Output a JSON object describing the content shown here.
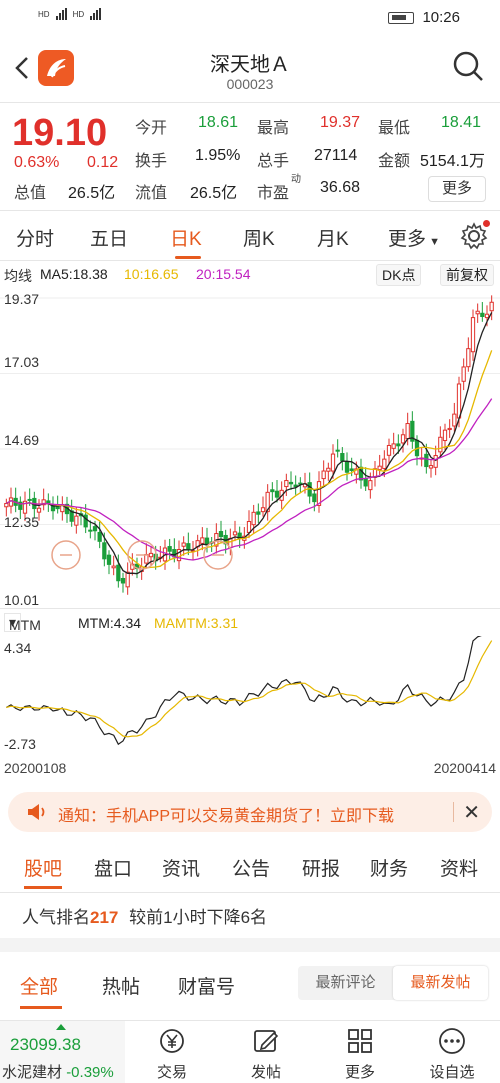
{
  "status": {
    "network_left": "HD",
    "network_right": "HD",
    "time": "10:26"
  },
  "header": {
    "title": "深天地Ａ",
    "code": "000023"
  },
  "quote": {
    "price": "19.10",
    "pct": "0.63%",
    "chg": "0.12",
    "open_label": "今开",
    "open": "18.61",
    "high_label": "最高",
    "high": "19.37",
    "low_label": "最低",
    "low": "18.41",
    "turnover_label": "换手",
    "turnover": "1.95%",
    "volume_label": "总手",
    "volume": "27114",
    "amount_label": "金额",
    "amount": "5154.1万",
    "mktcap_label": "总值",
    "mktcap": "26.5亿",
    "float_label": "流值",
    "float": "26.5亿",
    "pe_label": "市盈",
    "pe_sup": "动",
    "pe": "36.68",
    "more": "更多"
  },
  "tabs": [
    "分时",
    "五日",
    "日K",
    "周K",
    "月K",
    "更多"
  ],
  "active_tab": "日K",
  "ma": {
    "label": "均线",
    "ma5": "MA5:18.38",
    "ma10": "10:16.65",
    "ma20": "20:15.54",
    "dk": "DK点",
    "fq": "前复权"
  },
  "price_axis": [
    "19.37",
    "17.03",
    "14.69",
    "12.35",
    "10.01"
  ],
  "mtm": {
    "selector": "MTM",
    "value": "MTM:4.34",
    "ma": "MAMTM:3.31",
    "top": "4.34",
    "bottom": "-2.73"
  },
  "dates": {
    "start": "20200108",
    "end": "20200414"
  },
  "notice": {
    "text": "通知：手机APP可以交易黄金期货了！立即下载"
  },
  "sections": [
    "股吧",
    "盘口",
    "资讯",
    "公告",
    "研报",
    "财务",
    "资料"
  ],
  "active_section": "股吧",
  "popularity": {
    "prefix": "人气排名",
    "rank": "217",
    "suffix": "较前1小时下降6名"
  },
  "subtabs": [
    "全部",
    "热帖",
    "财富号"
  ],
  "seg": [
    "最新评论",
    "最新发帖"
  ],
  "index": {
    "value": "23099.38",
    "name": "水泥建材",
    "change": "-0.39%"
  },
  "bottom": [
    "交易",
    "发帖",
    "更多",
    "设自选"
  ],
  "colors": {
    "up": "#e0302b",
    "down": "#1a9e3a",
    "accent": "#e65a1e",
    "ma10": "#e6b800",
    "ma20": "#c021c0"
  }
}
